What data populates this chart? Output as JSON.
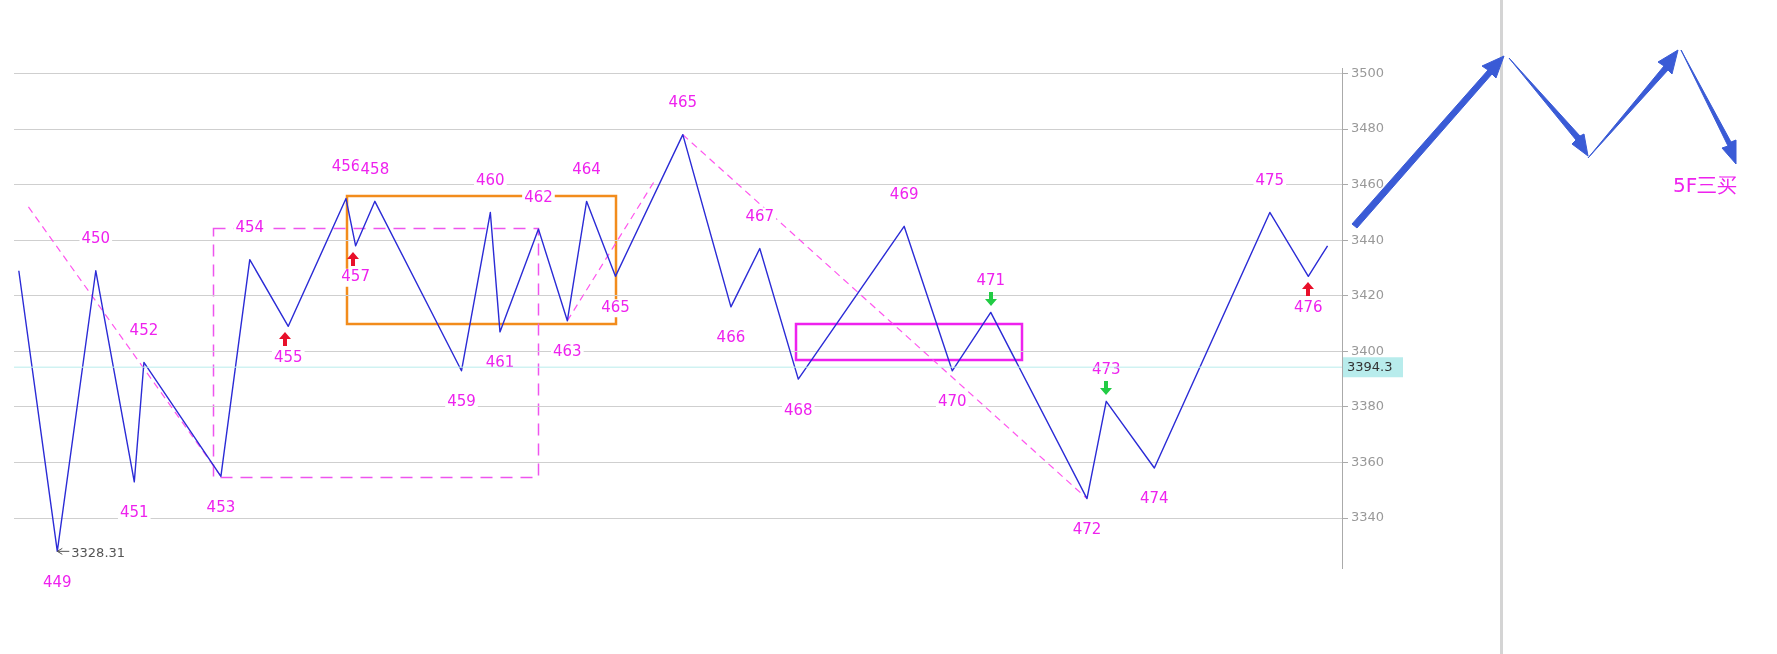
{
  "chart_data": {
    "type": "line",
    "categories": [
      null,
      null,
      null,
      null,
      null,
      null,
      null,
      null,
      null,
      null,
      null,
      null,
      null,
      null,
      null,
      null,
      null,
      null,
      null,
      null,
      null,
      null,
      null,
      null,
      null,
      null,
      null,
      null,
      null,
      null,
      null,
      null,
      null,
      null,
      null,
      null,
      null,
      null,
      null,
      null,
      null,
      null,
      null,
      null,
      null,
      null,
      null,
      null,
      null,
      null,
      null,
      null,
      null,
      null,
      null,
      null,
      null,
      null,
      null,
      null,
      null,
      null,
      null,
      null,
      null,
      null,
      null,
      null,
      null,
      null,
      null,
      null,
      null,
      null,
      null,
      null,
      null,
      null,
      null,
      null,
      null,
      null,
      null,
      null,
      null,
      null,
      null,
      null,
      null,
      null,
      null,
      null,
      null,
      null,
      null,
      null,
      null,
      null,
      null,
      null,
      null,
      null,
      null,
      null,
      null,
      null,
      null,
      null,
      null,
      null,
      null,
      null,
      null,
      null,
      null,
      null,
      null,
      null,
      null,
      null,
      null,
      null,
      null,
      null,
      null,
      null,
      null,
      null,
      null,
      null,
      null,
      null,
      null,
      null,
      null,
      null,
      null,
      null
    ],
    "series": [
      {
        "color": "#2b2bd6",
        "line_style": "solid",
        "values": [
          3429,
          null,
          null,
          null,
          3328,
          null,
          null,
          null,
          3429,
          null,
          null,
          null,
          3353,
          3396,
          null,
          null,
          null,
          null,
          null,
          null,
          null,
          3355,
          null,
          null,
          3433,
          null,
          null,
          null,
          3409,
          null,
          null,
          null,
          null,
          null,
          3455,
          3438,
          null,
          3454,
          null,
          null,
          null,
          null,
          null,
          null,
          null,
          null,
          3393,
          null,
          null,
          3450,
          3407,
          null,
          null,
          null,
          3444,
          null,
          null,
          3411,
          null,
          3454,
          null,
          null,
          3427,
          null,
          null,
          null,
          null,
          null,
          null,
          3478,
          null,
          null,
          null,
          null,
          3416,
          null,
          null,
          3437,
          null,
          null,
          null,
          3390,
          null,
          null,
          null,
          null,
          null,
          null,
          null,
          null,
          null,
          null,
          3445,
          null,
          null,
          null,
          null,
          3393,
          null,
          null,
          null,
          3414,
          null,
          null,
          null,
          null,
          null,
          null,
          null,
          null,
          null,
          3347,
          null,
          3382,
          null,
          null,
          null,
          null,
          3358,
          null,
          null,
          null,
          null,
          null,
          null,
          null,
          null,
          null,
          null,
          null,
          3450,
          null,
          null,
          null,
          3427,
          null,
          3438,
          null
        ]
      },
      {
        "color": "#ff55ee",
        "line_style": "dashed",
        "values": [
          null,
          3452,
          null,
          null,
          null,
          null,
          null,
          null,
          null,
          null,
          null,
          null,
          null,
          null,
          null,
          null,
          null,
          null,
          null,
          null,
          null,
          3355,
          null,
          null,
          null,
          null,
          null,
          null,
          null,
          null,
          null,
          null,
          null,
          null,
          null,
          null,
          null,
          null,
          null,
          null,
          null,
          null,
          null,
          null,
          null,
          null,
          null,
          null,
          null,
          null,
          null,
          null,
          null,
          null,
          null,
          null,
          null,
          null,
          null,
          null,
          null,
          null,
          null,
          null,
          null,
          null,
          null,
          null,
          null,
          null,
          null,
          null,
          null,
          null,
          null,
          null,
          null,
          null,
          null,
          null,
          null,
          null,
          null,
          null,
          null,
          null,
          null,
          null,
          null,
          null,
          null,
          null,
          null,
          null,
          null,
          null,
          null,
          null,
          null,
          null,
          null,
          null,
          null,
          null,
          null,
          null,
          null,
          null,
          null,
          null,
          null,
          null,
          null,
          null,
          null,
          null,
          null,
          null,
          null,
          null,
          null,
          null,
          null,
          null,
          null,
          null,
          null,
          null,
          null,
          null,
          null,
          null,
          null,
          null,
          null,
          null,
          null,
          null
        ]
      },
      {
        "color": "#ff55ee",
        "line_style": "dashed",
        "values": [
          null,
          null,
          null,
          null,
          null,
          null,
          null,
          null,
          null,
          null,
          null,
          null,
          null,
          null,
          null,
          null,
          null,
          null,
          null,
          null,
          null,
          null,
          null,
          null,
          null,
          null,
          null,
          null,
          null,
          null,
          null,
          null,
          null,
          null,
          null,
          null,
          null,
          null,
          null,
          null,
          null,
          null,
          null,
          null,
          null,
          null,
          null,
          null,
          null,
          null,
          null,
          null,
          null,
          null,
          null,
          null,
          null,
          3411,
          null,
          null,
          null,
          null,
          null,
          null,
          null,
          null,
          3461,
          null,
          null,
          null,
          null,
          null,
          null,
          null,
          null,
          null,
          null,
          null,
          null,
          null,
          null,
          null,
          null,
          null,
          null,
          null,
          null,
          null,
          null,
          null,
          null,
          null,
          null,
          null,
          null,
          null,
          null,
          null,
          null,
          null,
          null,
          null,
          null,
          null,
          null,
          null,
          null,
          null,
          null,
          null,
          null,
          null,
          null,
          null,
          null,
          null,
          null,
          null,
          null,
          null,
          null,
          null,
          null,
          null,
          null,
          null,
          null,
          null,
          null,
          null,
          null,
          null,
          null,
          null,
          null,
          null,
          null,
          null
        ]
      },
      {
        "color": "#ff55ee",
        "line_style": "dashed",
        "values": [
          null,
          null,
          null,
          null,
          null,
          null,
          null,
          null,
          null,
          null,
          null,
          null,
          null,
          null,
          null,
          null,
          null,
          null,
          null,
          null,
          null,
          null,
          null,
          null,
          null,
          null,
          null,
          null,
          null,
          null,
          null,
          null,
          null,
          null,
          null,
          null,
          null,
          null,
          null,
          null,
          null,
          null,
          null,
          null,
          null,
          null,
          null,
          null,
          null,
          null,
          null,
          null,
          null,
          null,
          null,
          null,
          null,
          null,
          null,
          null,
          null,
          null,
          null,
          null,
          null,
          null,
          null,
          null,
          null,
          3478,
          null,
          null,
          null,
          null,
          null,
          null,
          null,
          null,
          null,
          null,
          null,
          null,
          null,
          null,
          null,
          null,
          null,
          null,
          null,
          null,
          null,
          null,
          null,
          null,
          null,
          null,
          null,
          null,
          null,
          null,
          null,
          null,
          null,
          null,
          null,
          null,
          null,
          null,
          null,
          null,
          null,
          3347,
          null,
          null,
          null,
          null,
          null,
          null,
          null,
          null,
          null,
          null,
          null,
          null,
          null,
          null,
          null,
          null,
          null,
          null,
          null,
          null,
          null,
          null,
          null,
          null,
          null,
          null
        ]
      }
    ],
    "ylim": [
      3322,
      3502
    ],
    "yticks": [
      3340,
      3360,
      3380,
      3400,
      3420,
      3440,
      3460,
      3480,
      3500
    ],
    "grid": "y",
    "tick_labels": "y",
    "marker": "none",
    "ref_lines": [
      {
        "axis": "y",
        "value": 3394.3,
        "label": "3394.3",
        "color": "#b8ecec"
      }
    ],
    "annotations": [
      "3328.31",
      "449",
      "450",
      "451",
      "452",
      "453",
      "454",
      "455",
      "456",
      "457",
      "458",
      "459",
      "460",
      "461",
      "462",
      "463",
      "464",
      "465",
      "465",
      "466",
      "467",
      "468",
      "469",
      "470",
      "471",
      "472",
      "473",
      "474",
      "475",
      "476",
      "5F三买"
    ]
  }
}
